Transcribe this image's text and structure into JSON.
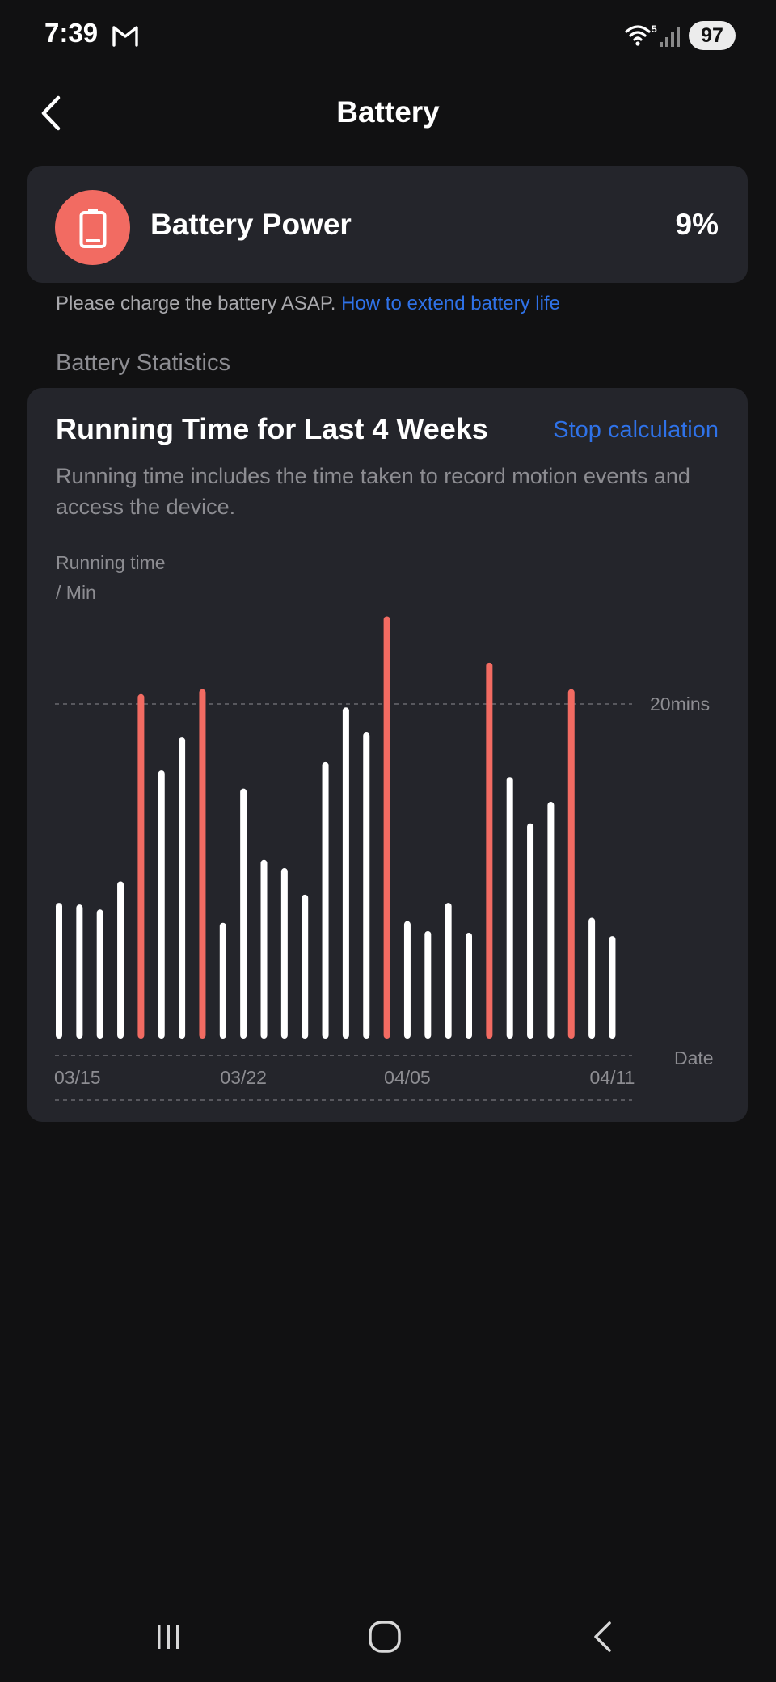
{
  "status_bar": {
    "time": "7:39",
    "battery_level": "97",
    "wifi_badge": "5"
  },
  "header": {
    "title": "Battery"
  },
  "battery_card": {
    "title": "Battery Power",
    "value": "9%",
    "icon": "battery-low-icon",
    "icon_color": "#f26b62"
  },
  "battery_note": {
    "text": "Please charge the battery ASAP.",
    "link": "How to extend battery life"
  },
  "section": {
    "label": "Battery Statistics"
  },
  "stats_card": {
    "title": "Running Time for Last 4 Weeks",
    "action": "Stop calculation",
    "description": "Running time includes the time taken to record motion events and access the device."
  },
  "chart_data": {
    "type": "bar",
    "title": "",
    "ylabel_line1": "Running time",
    "ylabel_line2": "/ Min",
    "xlabel": "Date",
    "reference_line": {
      "value": 20,
      "label": "20mins"
    },
    "ylim": [
      0,
      25
    ],
    "x_tick_labels": [
      "03/15",
      "03/22",
      "04/05",
      "04/11"
    ],
    "x_tick_index": [
      0,
      9,
      17,
      27
    ],
    "values": [
      7.8,
      7.7,
      7.4,
      9.1,
      20.4,
      15.8,
      17.8,
      20.7,
      6.6,
      14.7,
      10.4,
      9.9,
      8.3,
      16.3,
      19.6,
      18.1,
      25.1,
      6.7,
      6.1,
      7.8,
      6.0,
      22.3,
      15.4,
      12.6,
      13.9,
      20.7,
      6.9,
      5.8
    ],
    "highlight_threshold": 20,
    "highlight_color": "#f26b62",
    "bar_color": "#ffffff"
  },
  "nav_bar": {
    "recents": "recents-icon",
    "home": "home-icon",
    "back": "back-icon"
  }
}
